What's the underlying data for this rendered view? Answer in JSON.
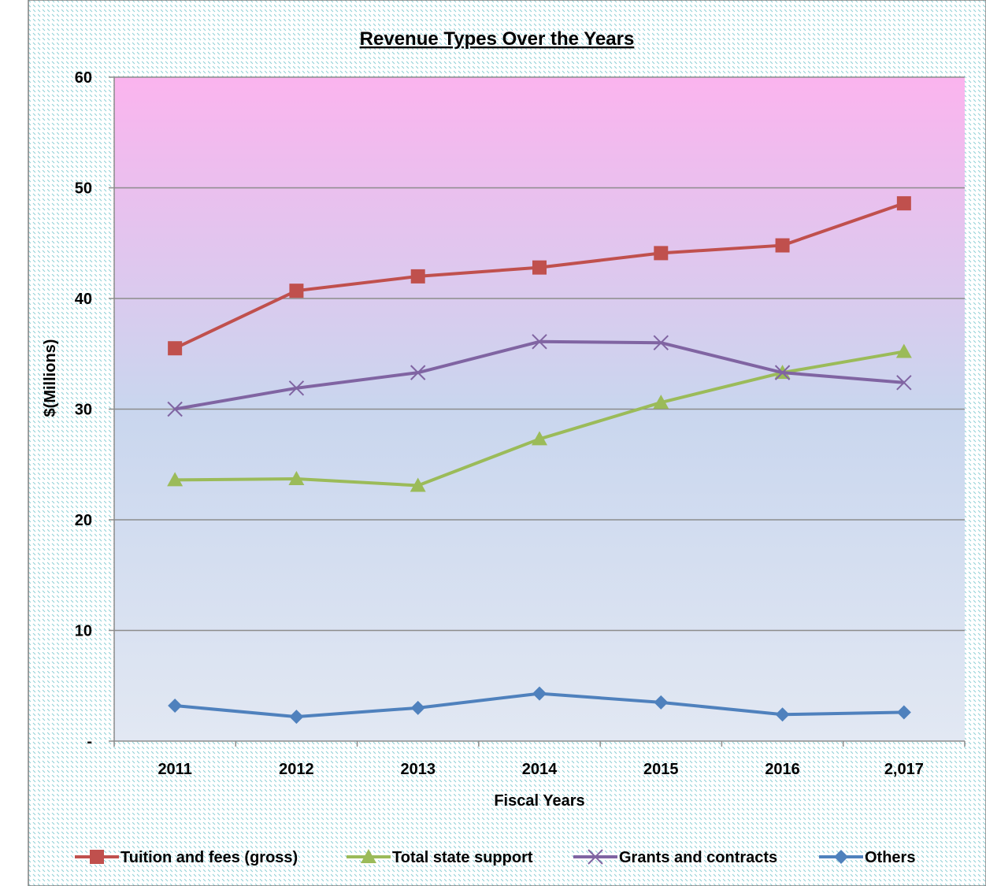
{
  "chart_data": {
    "type": "line",
    "title": "Revenue Types Over the Years",
    "xlabel": "Fiscal Years",
    "ylabel": "$(Millions)",
    "categories": [
      "2011",
      "2012",
      "2013",
      "2014",
      "2015",
      "2016",
      "2,017"
    ],
    "ylim": [
      0,
      60
    ],
    "yticks": [
      "-",
      "10",
      "20",
      "30",
      "40",
      "50",
      "60"
    ],
    "grid": true,
    "legend_position": "bottom",
    "series": [
      {
        "name": "Tuition and fees (gross)",
        "color": "#c0504d",
        "marker": "square",
        "values": [
          35.5,
          40.7,
          42.0,
          42.8,
          44.1,
          44.8,
          48.6
        ]
      },
      {
        "name": "Total state support",
        "color": "#9bbb59",
        "marker": "triangle",
        "values": [
          23.6,
          23.7,
          23.1,
          27.3,
          30.6,
          33.3,
          35.2
        ]
      },
      {
        "name": "Grants and contracts",
        "color": "#8064a2",
        "marker": "x",
        "values": [
          30.0,
          31.9,
          33.3,
          36.1,
          36.0,
          33.3,
          32.4
        ]
      },
      {
        "name": "Others",
        "color": "#4f81bd",
        "marker": "diamond",
        "values": [
          3.2,
          2.2,
          3.0,
          4.3,
          3.5,
          2.4,
          2.6
        ]
      }
    ],
    "plot_background": {
      "top": "#fbb4ee",
      "bottom": "#e2e8f3"
    },
    "gridline_color": "#8c8c8c"
  }
}
